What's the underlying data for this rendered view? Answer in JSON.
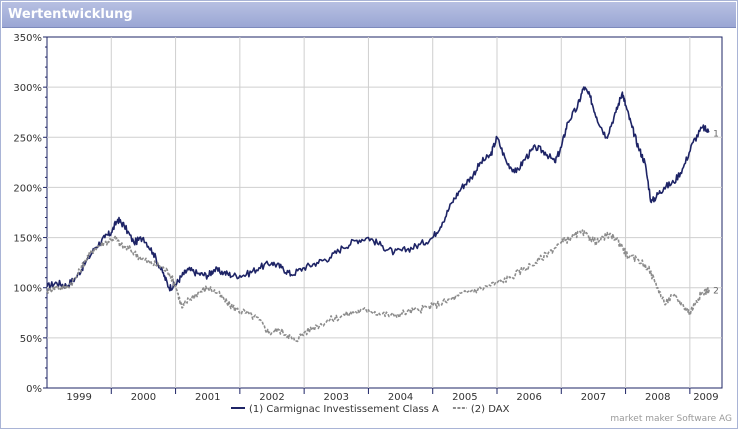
{
  "title": "Wertentwicklung",
  "credit": "market maker Software AG",
  "colors": {
    "series1": "#1e2466",
    "series2": "#8c8c8c",
    "grid": "#cfcfcf",
    "axis": "#1e2466",
    "title_bg": "#9aa6d4"
  },
  "chart_data": {
    "type": "line",
    "title": "Wertentwicklung",
    "x_ticks": [
      "1999",
      "2000",
      "2001",
      "2002",
      "2003",
      "2004",
      "2005",
      "2006",
      "2007",
      "2008",
      "2009"
    ],
    "y_ticks": [
      "0%",
      "50%",
      "100%",
      "150%",
      "200%",
      "250%",
      "300%",
      "350%"
    ],
    "ylim": [
      0,
      350
    ],
    "xlim": [
      1999.0,
      2009.5
    ],
    "grid": true,
    "legend_position": "bottom",
    "series": [
      {
        "name": "(1) Carmignac Investissement Class A",
        "label": "1",
        "style": "solid",
        "x": [
          1999.0,
          1999.15,
          1999.3,
          1999.45,
          1999.6,
          1999.75,
          1999.9,
          2000.0,
          2000.1,
          2000.2,
          2000.35,
          2000.5,
          2000.65,
          2000.8,
          2000.9,
          2001.0,
          2001.1,
          2001.2,
          2001.35,
          2001.5,
          2001.6,
          2001.75,
          2001.9,
          2002.1,
          2002.3,
          2002.5,
          2002.65,
          2002.8,
          2003.0,
          2003.2,
          2003.4,
          2003.6,
          2003.8,
          2004.0,
          2004.2,
          2004.4,
          2004.6,
          2004.8,
          2005.0,
          2005.15,
          2005.3,
          2005.45,
          2005.6,
          2005.75,
          2005.9,
          2006.0,
          2006.15,
          2006.3,
          2006.45,
          2006.6,
          2006.75,
          2006.9,
          2007.0,
          2007.1,
          2007.25,
          2007.35,
          2007.45,
          2007.55,
          2007.7,
          2007.85,
          2007.95,
          2008.0,
          2008.1,
          2008.2,
          2008.3,
          2008.4,
          2008.5,
          2008.6,
          2008.75,
          2008.9,
          2009.05,
          2009.2,
          2009.3
        ],
        "y": [
          101,
          105,
          102,
          110,
          125,
          140,
          150,
          155,
          168,
          162,
          145,
          150,
          135,
          115,
          100,
          103,
          112,
          118,
          114,
          112,
          118,
          115,
          112,
          113,
          120,
          125,
          120,
          113,
          120,
          125,
          130,
          140,
          147,
          150,
          142,
          135,
          138,
          143,
          150,
          165,
          185,
          200,
          210,
          225,
          232,
          250,
          225,
          215,
          230,
          240,
          235,
          225,
          240,
          265,
          280,
          300,
          290,
          270,
          250,
          275,
          295,
          282,
          260,
          240,
          225,
          185,
          193,
          200,
          205,
          220,
          245,
          260,
          255
        ]
      },
      {
        "name": "(2) DAX",
        "label": "2",
        "style": "dashed",
        "x": [
          1999.0,
          1999.15,
          1999.3,
          1999.45,
          1999.6,
          1999.75,
          1999.9,
          2000.05,
          2000.15,
          2000.3,
          2000.45,
          2000.6,
          2000.75,
          2000.9,
          2001.0,
          2001.1,
          2001.2,
          2001.35,
          2001.5,
          2001.65,
          2001.8,
          2001.95,
          2002.1,
          2002.3,
          2002.45,
          2002.6,
          2002.75,
          2002.85,
          2003.0,
          2003.2,
          2003.4,
          2003.6,
          2003.8,
          2004.0,
          2004.2,
          2004.4,
          2004.6,
          2004.8,
          2005.0,
          2005.2,
          2005.4,
          2005.6,
          2005.8,
          2006.0,
          2006.2,
          2006.4,
          2006.6,
          2006.8,
          2007.0,
          2007.15,
          2007.3,
          2007.45,
          2007.55,
          2007.7,
          2007.85,
          2007.95,
          2008.05,
          2008.2,
          2008.35,
          2008.5,
          2008.6,
          2008.75,
          2008.9,
          2009.0,
          2009.1,
          2009.2,
          2009.3
        ],
        "y": [
          97,
          101,
          100,
          110,
          128,
          140,
          145,
          150,
          142,
          138,
          130,
          125,
          122,
          115,
          102,
          80,
          88,
          95,
          100,
          95,
          85,
          78,
          75,
          68,
          55,
          58,
          53,
          47,
          55,
          62,
          68,
          72,
          76,
          78,
          74,
          72,
          76,
          78,
          82,
          86,
          92,
          97,
          100,
          105,
          110,
          118,
          125,
          135,
          145,
          150,
          155,
          150,
          145,
          152,
          150,
          140,
          130,
          128,
          120,
          100,
          85,
          92,
          82,
          75,
          87,
          95,
          98
        ]
      }
    ]
  }
}
